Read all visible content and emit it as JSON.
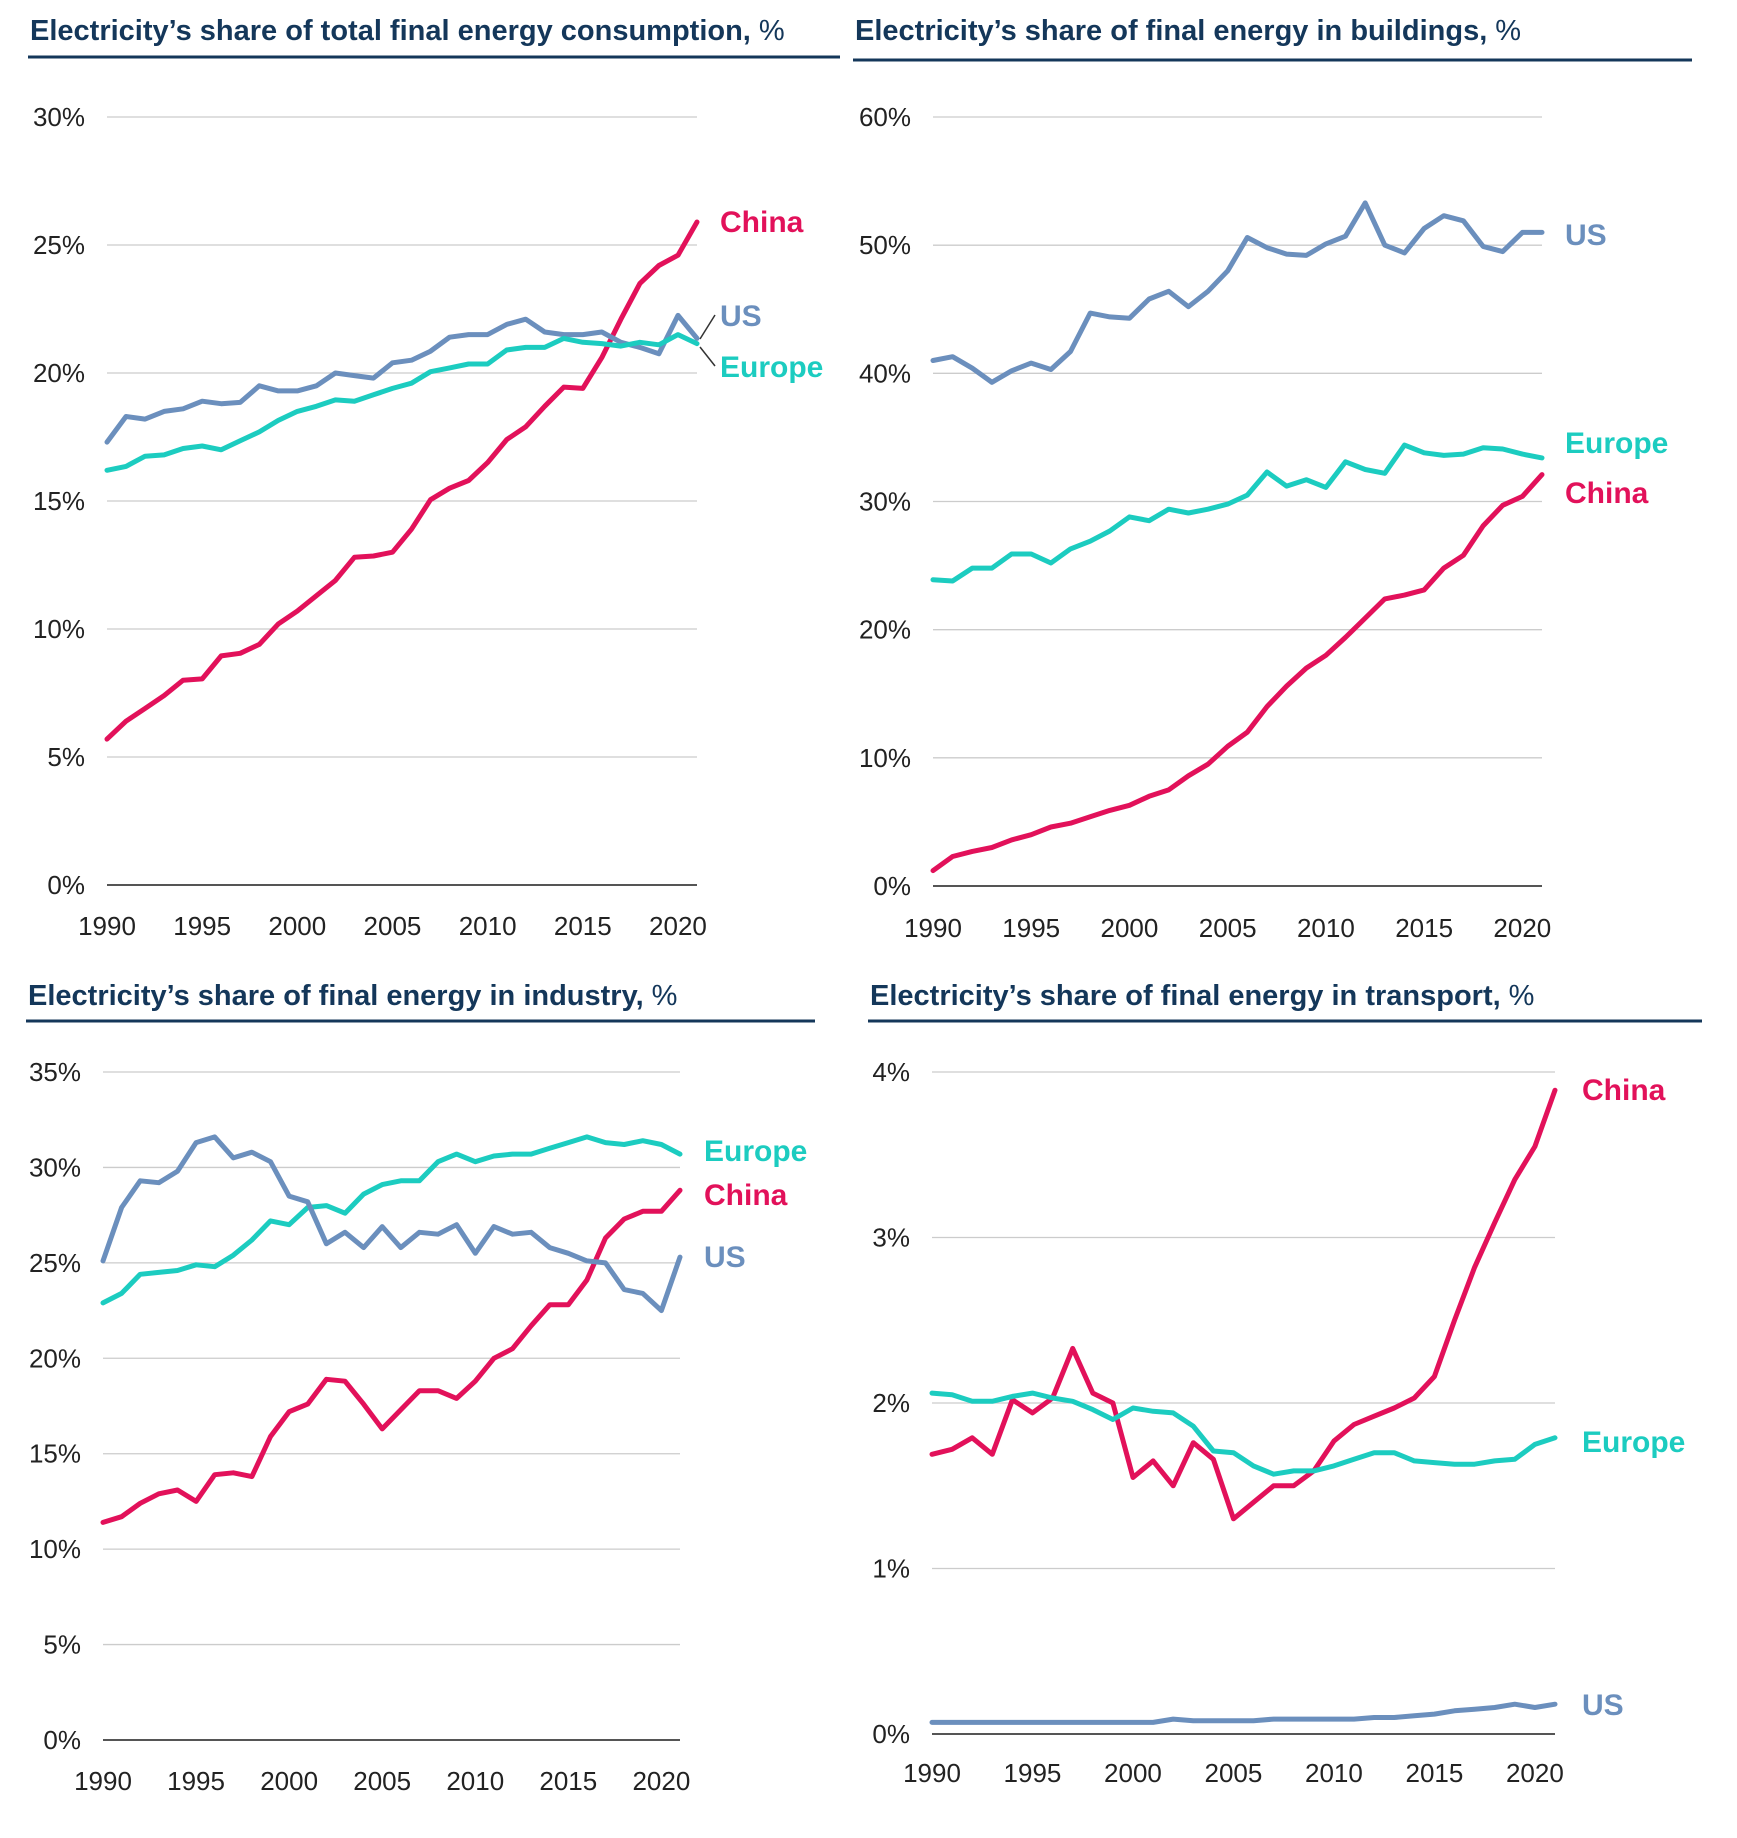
{
  "colors": {
    "China": "#e2115a",
    "US": "#6b8fbd",
    "Europe": "#1cccc0",
    "title": "#14375a"
  },
  "chart_data": [
    {
      "id": "total",
      "type": "line",
      "title": "Electricity’s share of total final energy consumption,",
      "title_unit": "%",
      "xlabel": "",
      "ylabel": "",
      "xlim": [
        1990,
        2021
      ],
      "ylim": [
        0,
        30
      ],
      "x_ticks": [
        "1990",
        "1995",
        "2000",
        "2005",
        "2010",
        "2015",
        "2020"
      ],
      "y_ticks": [
        "0%",
        "5%",
        "10%",
        "15%",
        "20%",
        "25%",
        "30%"
      ],
      "y_tick_values": [
        0,
        5,
        10,
        15,
        20,
        25,
        30
      ],
      "grid": true,
      "legend": "inline-right",
      "x": [
        1990,
        1991,
        1992,
        1993,
        1994,
        1995,
        1996,
        1997,
        1998,
        1999,
        2000,
        2001,
        2002,
        2003,
        2004,
        2005,
        2006,
        2007,
        2008,
        2009,
        2010,
        2011,
        2012,
        2013,
        2014,
        2015,
        2016,
        2017,
        2018,
        2019,
        2020,
        2021
      ],
      "series": [
        {
          "name": "China",
          "label": "China",
          "values": [
            5.7,
            6.4,
            6.9,
            7.4,
            8.0,
            8.05,
            8.95,
            9.05,
            9.4,
            10.2,
            10.7,
            11.3,
            11.9,
            12.8,
            12.85,
            13.0,
            13.9,
            15.05,
            15.5,
            15.8,
            16.5,
            17.4,
            17.9,
            18.7,
            19.45,
            19.4,
            20.6,
            22.1,
            23.5,
            24.2,
            24.6,
            25.9
          ]
        },
        {
          "name": "US",
          "label": "US",
          "values": [
            17.3,
            18.3,
            18.2,
            18.5,
            18.6,
            18.9,
            18.8,
            18.85,
            19.5,
            19.3,
            19.3,
            19.5,
            20.0,
            19.9,
            19.8,
            20.4,
            20.5,
            20.85,
            21.4,
            21.5,
            21.5,
            21.9,
            22.1,
            21.6,
            21.5,
            21.5,
            21.6,
            21.2,
            21.0,
            20.75,
            22.25,
            21.35
          ]
        },
        {
          "name": "Europe",
          "label": "Europe",
          "values": [
            16.2,
            16.35,
            16.75,
            16.8,
            17.05,
            17.15,
            17.0,
            17.35,
            17.7,
            18.15,
            18.5,
            18.7,
            18.95,
            18.9,
            19.15,
            19.4,
            19.6,
            20.05,
            20.2,
            20.35,
            20.35,
            20.9,
            21.0,
            21.0,
            21.35,
            21.2,
            21.15,
            21.05,
            21.2,
            21.1,
            21.5,
            21.15
          ]
        }
      ]
    },
    {
      "id": "buildings",
      "type": "line",
      "title": "Electricity’s share of final energy in buildings,",
      "title_unit": "%",
      "xlabel": "",
      "ylabel": "",
      "xlim": [
        1990,
        2021
      ],
      "ylim": [
        0,
        60
      ],
      "x_ticks": [
        "1990",
        "1995",
        "2000",
        "2005",
        "2010",
        "2015",
        "2020"
      ],
      "y_ticks": [
        "0%",
        "10%",
        "20%",
        "30%",
        "40%",
        "50%",
        "60%"
      ],
      "y_tick_values": [
        0,
        10,
        20,
        30,
        40,
        50,
        60
      ],
      "grid": true,
      "legend": "inline-right",
      "x": [
        1990,
        1991,
        1992,
        1993,
        1994,
        1995,
        1996,
        1997,
        1998,
        1999,
        2000,
        2001,
        2002,
        2003,
        2004,
        2005,
        2006,
        2007,
        2008,
        2009,
        2010,
        2011,
        2012,
        2013,
        2014,
        2015,
        2016,
        2017,
        2018,
        2019,
        2020,
        2021
      ],
      "series": [
        {
          "name": "US",
          "label": "US",
          "values": [
            41.0,
            41.3,
            40.4,
            39.3,
            40.2,
            40.8,
            40.3,
            41.7,
            44.7,
            44.4,
            44.3,
            45.8,
            46.4,
            45.2,
            46.4,
            48.0,
            50.6,
            49.8,
            49.3,
            49.2,
            50.1,
            50.7,
            53.3,
            50.0,
            49.4,
            51.3,
            52.3,
            51.9,
            49.9,
            49.5,
            51.0,
            51.0
          ]
        },
        {
          "name": "Europe",
          "label": "Europe",
          "values": [
            23.9,
            23.8,
            24.8,
            24.8,
            25.9,
            25.9,
            25.2,
            26.3,
            26.9,
            27.7,
            28.8,
            28.5,
            29.4,
            29.1,
            29.4,
            29.8,
            30.5,
            32.3,
            31.2,
            31.7,
            31.1,
            33.1,
            32.5,
            32.2,
            34.4,
            33.8,
            33.6,
            33.7,
            34.2,
            34.1,
            33.7,
            33.4
          ]
        },
        {
          "name": "China",
          "label": "China",
          "values": [
            1.2,
            2.3,
            2.7,
            3.0,
            3.6,
            4.0,
            4.6,
            4.9,
            5.4,
            5.9,
            6.3,
            7.0,
            7.5,
            8.6,
            9.5,
            10.9,
            12.0,
            14.0,
            15.6,
            17.0,
            18.0,
            19.4,
            20.9,
            22.4,
            22.7,
            23.1,
            24.8,
            25.8,
            28.1,
            29.7,
            30.4,
            32.1
          ]
        }
      ]
    },
    {
      "id": "industry",
      "type": "line",
      "title": "Electricity’s share of final energy in industry,",
      "title_unit": "%",
      "xlabel": "",
      "ylabel": "",
      "xlim": [
        1990,
        2021
      ],
      "ylim": [
        0,
        35
      ],
      "x_ticks": [
        "1990",
        "1995",
        "2000",
        "2005",
        "2010",
        "2015",
        "2020"
      ],
      "y_ticks": [
        "0%",
        "5%",
        "10%",
        "15%",
        "20%",
        "25%",
        "30%",
        "35%"
      ],
      "y_tick_values": [
        0,
        5,
        10,
        15,
        20,
        25,
        30,
        35
      ],
      "grid": true,
      "legend": "inline-right",
      "x": [
        1990,
        1991,
        1992,
        1993,
        1994,
        1995,
        1996,
        1997,
        1998,
        1999,
        2000,
        2001,
        2002,
        2003,
        2004,
        2005,
        2006,
        2007,
        2008,
        2009,
        2010,
        2011,
        2012,
        2013,
        2014,
        2015,
        2016,
        2017,
        2018,
        2019,
        2020,
        2021
      ],
      "series": [
        {
          "name": "Europe",
          "label": "Europe",
          "values": [
            22.9,
            23.4,
            24.4,
            24.5,
            24.6,
            24.9,
            24.8,
            25.4,
            26.2,
            27.2,
            27.0,
            27.9,
            28.0,
            27.6,
            28.6,
            29.1,
            29.3,
            29.3,
            30.3,
            30.7,
            30.3,
            30.6,
            30.7,
            30.7,
            31.0,
            31.3,
            31.6,
            31.3,
            31.2,
            31.4,
            31.2,
            30.7
          ]
        },
        {
          "name": "China",
          "label": "China",
          "values": [
            11.4,
            11.7,
            12.4,
            12.9,
            13.1,
            12.5,
            13.9,
            14.0,
            13.8,
            15.9,
            17.2,
            17.6,
            18.9,
            18.8,
            17.6,
            16.3,
            17.3,
            18.3,
            18.3,
            17.9,
            18.8,
            20.0,
            20.5,
            21.7,
            22.8,
            22.8,
            24.1,
            26.3,
            27.3,
            27.7,
            27.7,
            28.8
          ]
        },
        {
          "name": "US",
          "label": "US",
          "values": [
            25.1,
            27.9,
            29.3,
            29.2,
            29.8,
            31.3,
            31.6,
            30.5,
            30.8,
            30.3,
            28.5,
            28.2,
            26.0,
            26.6,
            25.8,
            26.9,
            25.8,
            26.6,
            26.5,
            27.0,
            25.5,
            26.9,
            26.5,
            26.6,
            25.8,
            25.5,
            25.1,
            25.0,
            23.6,
            23.4,
            22.5,
            25.3
          ]
        }
      ]
    },
    {
      "id": "transport",
      "type": "line",
      "title": "Electricity’s share of final energy in transport,",
      "title_unit": "%",
      "xlabel": "",
      "ylabel": "",
      "xlim": [
        1990,
        2021
      ],
      "ylim": [
        0,
        4
      ],
      "x_ticks": [
        "1990",
        "1995",
        "2000",
        "2005",
        "2010",
        "2015",
        "2020"
      ],
      "y_ticks": [
        "0%",
        "1%",
        "2%",
        "3%",
        "4%"
      ],
      "y_tick_values": [
        0,
        1,
        2,
        3,
        4
      ],
      "grid": true,
      "legend": "inline-right",
      "x": [
        1990,
        1991,
        1992,
        1993,
        1994,
        1995,
        1996,
        1997,
        1998,
        1999,
        2000,
        2001,
        2002,
        2003,
        2004,
        2005,
        2006,
        2007,
        2008,
        2009,
        2010,
        2011,
        2012,
        2013,
        2014,
        2015,
        2016,
        2017,
        2018,
        2019,
        2020,
        2021
      ],
      "series": [
        {
          "name": "China",
          "label": "China",
          "values": [
            1.69,
            1.72,
            1.79,
            1.69,
            2.02,
            1.94,
            2.03,
            2.33,
            2.06,
            2.0,
            1.55,
            1.65,
            1.5,
            1.76,
            1.66,
            1.3,
            1.4,
            1.5,
            1.5,
            1.59,
            1.77,
            1.87,
            1.92,
            1.97,
            2.03,
            2.16,
            2.5,
            2.82,
            3.09,
            3.35,
            3.55,
            3.89
          ]
        },
        {
          "name": "Europe",
          "label": "Europe",
          "values": [
            2.06,
            2.05,
            2.01,
            2.01,
            2.04,
            2.06,
            2.03,
            2.01,
            1.96,
            1.9,
            1.97,
            1.95,
            1.94,
            1.86,
            1.71,
            1.7,
            1.62,
            1.57,
            1.59,
            1.59,
            1.62,
            1.66,
            1.7,
            1.7,
            1.65,
            1.64,
            1.63,
            1.63,
            1.65,
            1.66,
            1.75,
            1.79
          ]
        },
        {
          "name": "US",
          "label": "US",
          "values": [
            0.07,
            0.07,
            0.07,
            0.07,
            0.07,
            0.07,
            0.07,
            0.07,
            0.07,
            0.07,
            0.07,
            0.07,
            0.09,
            0.08,
            0.08,
            0.08,
            0.08,
            0.09,
            0.09,
            0.09,
            0.09,
            0.09,
            0.1,
            0.1,
            0.11,
            0.12,
            0.14,
            0.15,
            0.16,
            0.18,
            0.16,
            0.18
          ]
        }
      ]
    }
  ]
}
